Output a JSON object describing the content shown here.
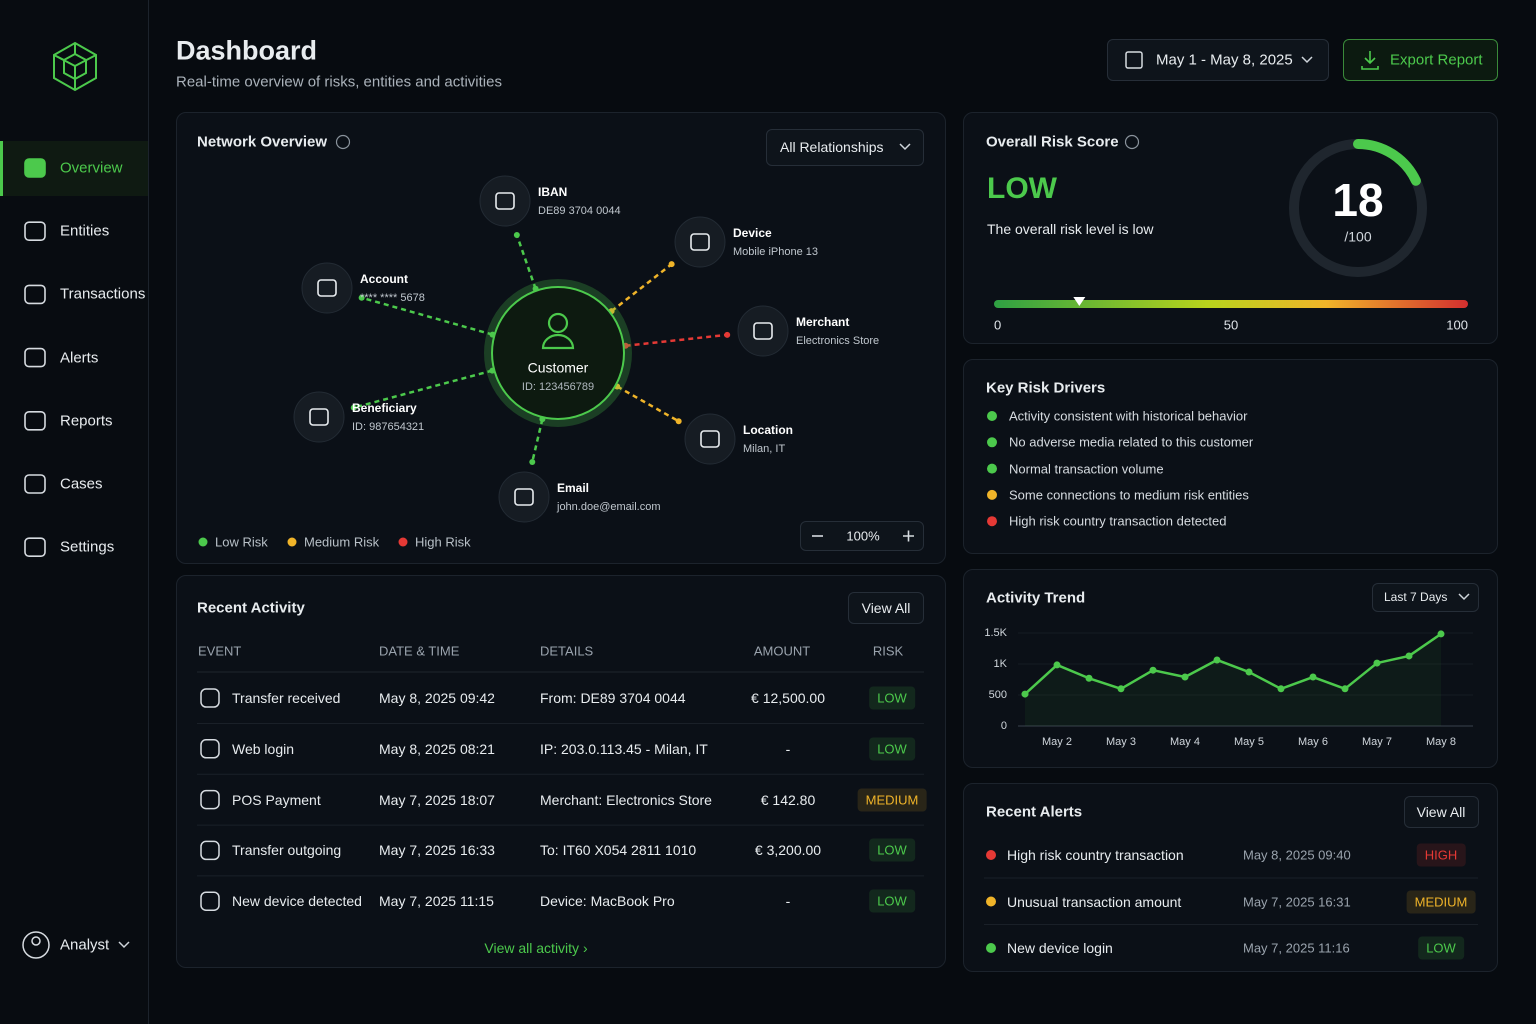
{
  "sidebar": {
    "nav": [
      "Overview",
      "Entities",
      "Transactions",
      "Alerts",
      "Reports",
      "Cases",
      "Settings"
    ],
    "user": "Analyst"
  },
  "header": {
    "title": "Dashboard",
    "subtitle": "Real-time overview of risks, entities and activities",
    "date_range": "May 1 - May 8, 2025",
    "export": "Export Report"
  },
  "network": {
    "title": "Network Overview",
    "filter": "All Relationships",
    "center": {
      "label": "Customer",
      "sub": "ID: 123456789"
    },
    "nodes": [
      {
        "label": "IBAN",
        "sub": "DE89 3704 0044",
        "color": "#4cc94c"
      },
      {
        "label": "Device",
        "sub": "Mobile iPhone 13",
        "color": "#f0b429"
      },
      {
        "label": "Merchant",
        "sub": "Electronics Store",
        "color": "#e53935"
      },
      {
        "label": "Location",
        "sub": "Milan, IT",
        "color": "#f0b429"
      },
      {
        "label": "Email",
        "sub": "john.doe@email.com",
        "color": "#4cc94c"
      },
      {
        "label": "Beneficiary",
        "sub": "ID: 987654321",
        "color": "#4cc94c"
      },
      {
        "label": "Account",
        "sub": "**** **** 5678",
        "color": "#4cc94c"
      }
    ],
    "legend": [
      {
        "label": "Low Risk",
        "color": "#4cc94c"
      },
      {
        "label": "Medium Risk",
        "color": "#f0b429"
      },
      {
        "label": "High Risk",
        "color": "#e53935"
      }
    ],
    "zoom": "100%"
  },
  "risk_score": {
    "title": "Overall Risk Score",
    "level": "LOW",
    "description": "The overall risk level is low",
    "score": 18,
    "max_label": "/100",
    "scale": [
      0,
      50,
      100
    ]
  },
  "drivers": {
    "title": "Key Risk Drivers",
    "items": [
      {
        "text": "Activity consistent with historical behavior",
        "color": "#4cc94c"
      },
      {
        "text": "No adverse media related to this customer",
        "color": "#4cc94c"
      },
      {
        "text": "Normal transaction volume",
        "color": "#4cc94c"
      },
      {
        "text": "Some connections to medium risk entities",
        "color": "#f0b429"
      },
      {
        "text": "High risk country transaction detected",
        "color": "#e53935"
      }
    ]
  },
  "chart_data": {
    "type": "line",
    "title": "Activity Trend",
    "filter": "Last 7 Days",
    "color": "#4cc94c",
    "categories": [
      null,
      "May 2",
      null,
      "May 3",
      null,
      "May 4",
      null,
      "May 5",
      null,
      "May 6",
      null,
      "May 7",
      null,
      "May 8"
    ],
    "values": [
      515,
      985,
      770,
      600,
      900,
      790,
      1065,
      870,
      600,
      790,
      600,
      1015,
      1130,
      1485
    ],
    "ylim": [
      0,
      1500
    ],
    "yticks": [
      0,
      500,
      {
        "value": 1000,
        "label": "1K"
      },
      {
        "value": 1500,
        "label": "1.5K"
      }
    ],
    "grid": true
  },
  "activity": {
    "title": "Recent Activity",
    "view_all": "View All",
    "columns": [
      "EVENT",
      "DATE & TIME",
      "DETAILS",
      "AMOUNT",
      "RISK"
    ],
    "rows": [
      {
        "event": "Transfer received",
        "datetime": "May 8, 2025 09:42",
        "details": "From: DE89 3704 0044",
        "amount": "€ 12,500.00",
        "risk": "LOW",
        "color": "#4cc94c"
      },
      {
        "event": "Web login",
        "datetime": "May 8, 2025 08:21",
        "details": "IP: 203.0.113.45 - Milan, IT",
        "amount": "-",
        "risk": "LOW",
        "color": "#4cc94c"
      },
      {
        "event": "POS Payment",
        "datetime": "May 7, 2025 18:07",
        "details": "Merchant: Electronics Store",
        "amount": "€ 142.80",
        "risk": "MEDIUM",
        "color": "#f0b429"
      },
      {
        "event": "Transfer outgoing",
        "datetime": "May 7, 2025 16:33",
        "details": "To: IT60 X054 2811 1010",
        "amount": "€ 3,200.00",
        "risk": "LOW",
        "color": "#4cc94c"
      },
      {
        "event": "New device detected",
        "datetime": "May 7, 2025 11:15",
        "details": "Device: MacBook Pro",
        "amount": "-",
        "risk": "LOW",
        "color": "#4cc94c"
      }
    ],
    "footer": "View all activity ›"
  },
  "alerts": {
    "title": "Recent Alerts",
    "view_all": "View All",
    "items": [
      {
        "text": "High risk country transaction",
        "datetime": "May 8, 2025 09:40",
        "risk": "HIGH",
        "color": "#e53935"
      },
      {
        "text": "Unusual transaction amount",
        "datetime": "May 7, 2025 16:31",
        "risk": "MEDIUM",
        "color": "#f0b429"
      },
      {
        "text": "New device login",
        "datetime": "May 7, 2025 11:16",
        "risk": "LOW",
        "color": "#4cc94c"
      }
    ]
  }
}
